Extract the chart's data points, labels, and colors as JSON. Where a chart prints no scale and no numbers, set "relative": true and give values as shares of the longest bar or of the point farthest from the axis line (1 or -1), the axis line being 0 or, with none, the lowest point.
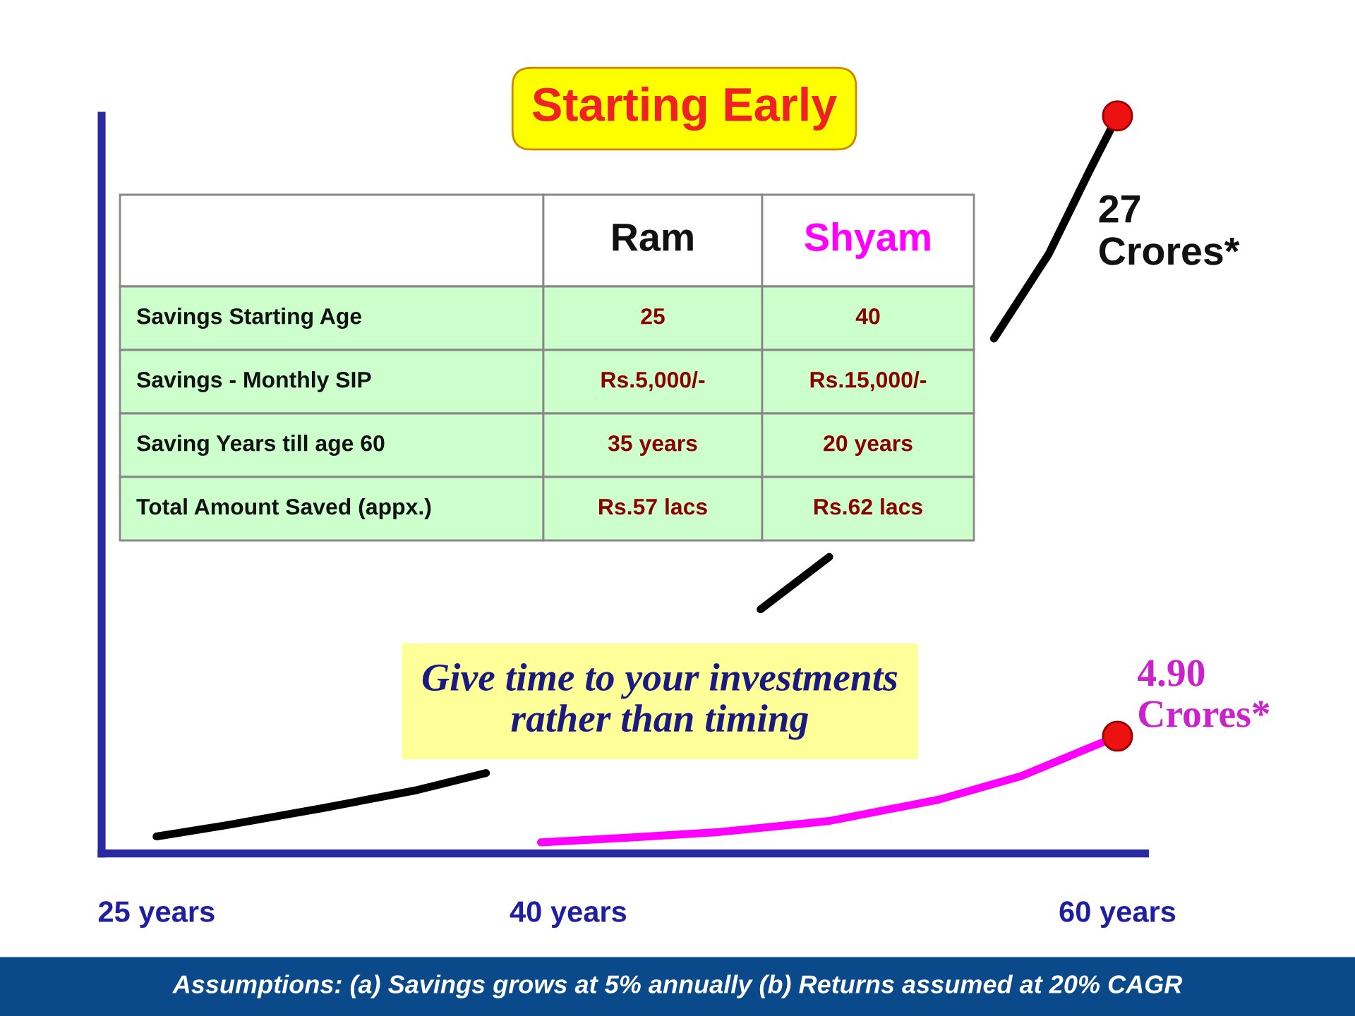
{
  "chart_data": {
    "type": "line",
    "title": "Starting Early",
    "relative": true,
    "x": [
      25,
      27.5,
      31,
      34.5,
      37,
      39.5,
      42,
      44.5,
      47,
      49.5,
      51.5,
      53.5,
      55.5,
      57.5,
      59,
      60
    ],
    "xlim": [
      23,
      61
    ],
    "xticks": [
      {
        "value": 25,
        "label": "25 years"
      },
      {
        "value": 40,
        "label": "40 years"
      },
      {
        "value": 60,
        "label": "60 years"
      }
    ],
    "series": [
      {
        "color": "#000000",
        "values": [
          0.023,
          0.038,
          0.061,
          0.086,
          0.109,
          null,
          null,
          null,
          0.331,
          0.402,
          null,
          null,
          0.698,
          0.813,
          0.927,
          1
        ]
      },
      {
        "color": "#ff00ff",
        "x": [
          39,
          42,
          45.5,
          49.5,
          53.5,
          56.5,
          60
        ],
        "values": [
          0.015,
          0.021,
          0.029,
          0.044,
          0.073,
          0.105,
          0.159
        ]
      }
    ],
    "marker": "none",
    "line_style": "solid",
    "grid": false,
    "legend": false,
    "annotations": [
      {
        "text": "27\nCrores*",
        "x": 60,
        "y": 1
      },
      {
        "text": "4.90\nCrores*",
        "x": 60,
        "y": 0.159
      },
      "Give time to your investments\nrather than timing",
      "Assumptions: (a) Savings grows at 5% annually (b) Returns assumed at 20% CAGR",
      "Ram",
      "Shyam",
      "Savings Starting Age",
      "25",
      "40",
      "Savings - Monthly SIP",
      "Rs.5,000/-",
      "Rs.15,000/-",
      "Saving Years till age 60",
      "35 years",
      "20 years",
      "Total Amount Saved (appx.)",
      "Rs.57 lacs",
      "Rs.62 lacs"
    ]
  }
}
